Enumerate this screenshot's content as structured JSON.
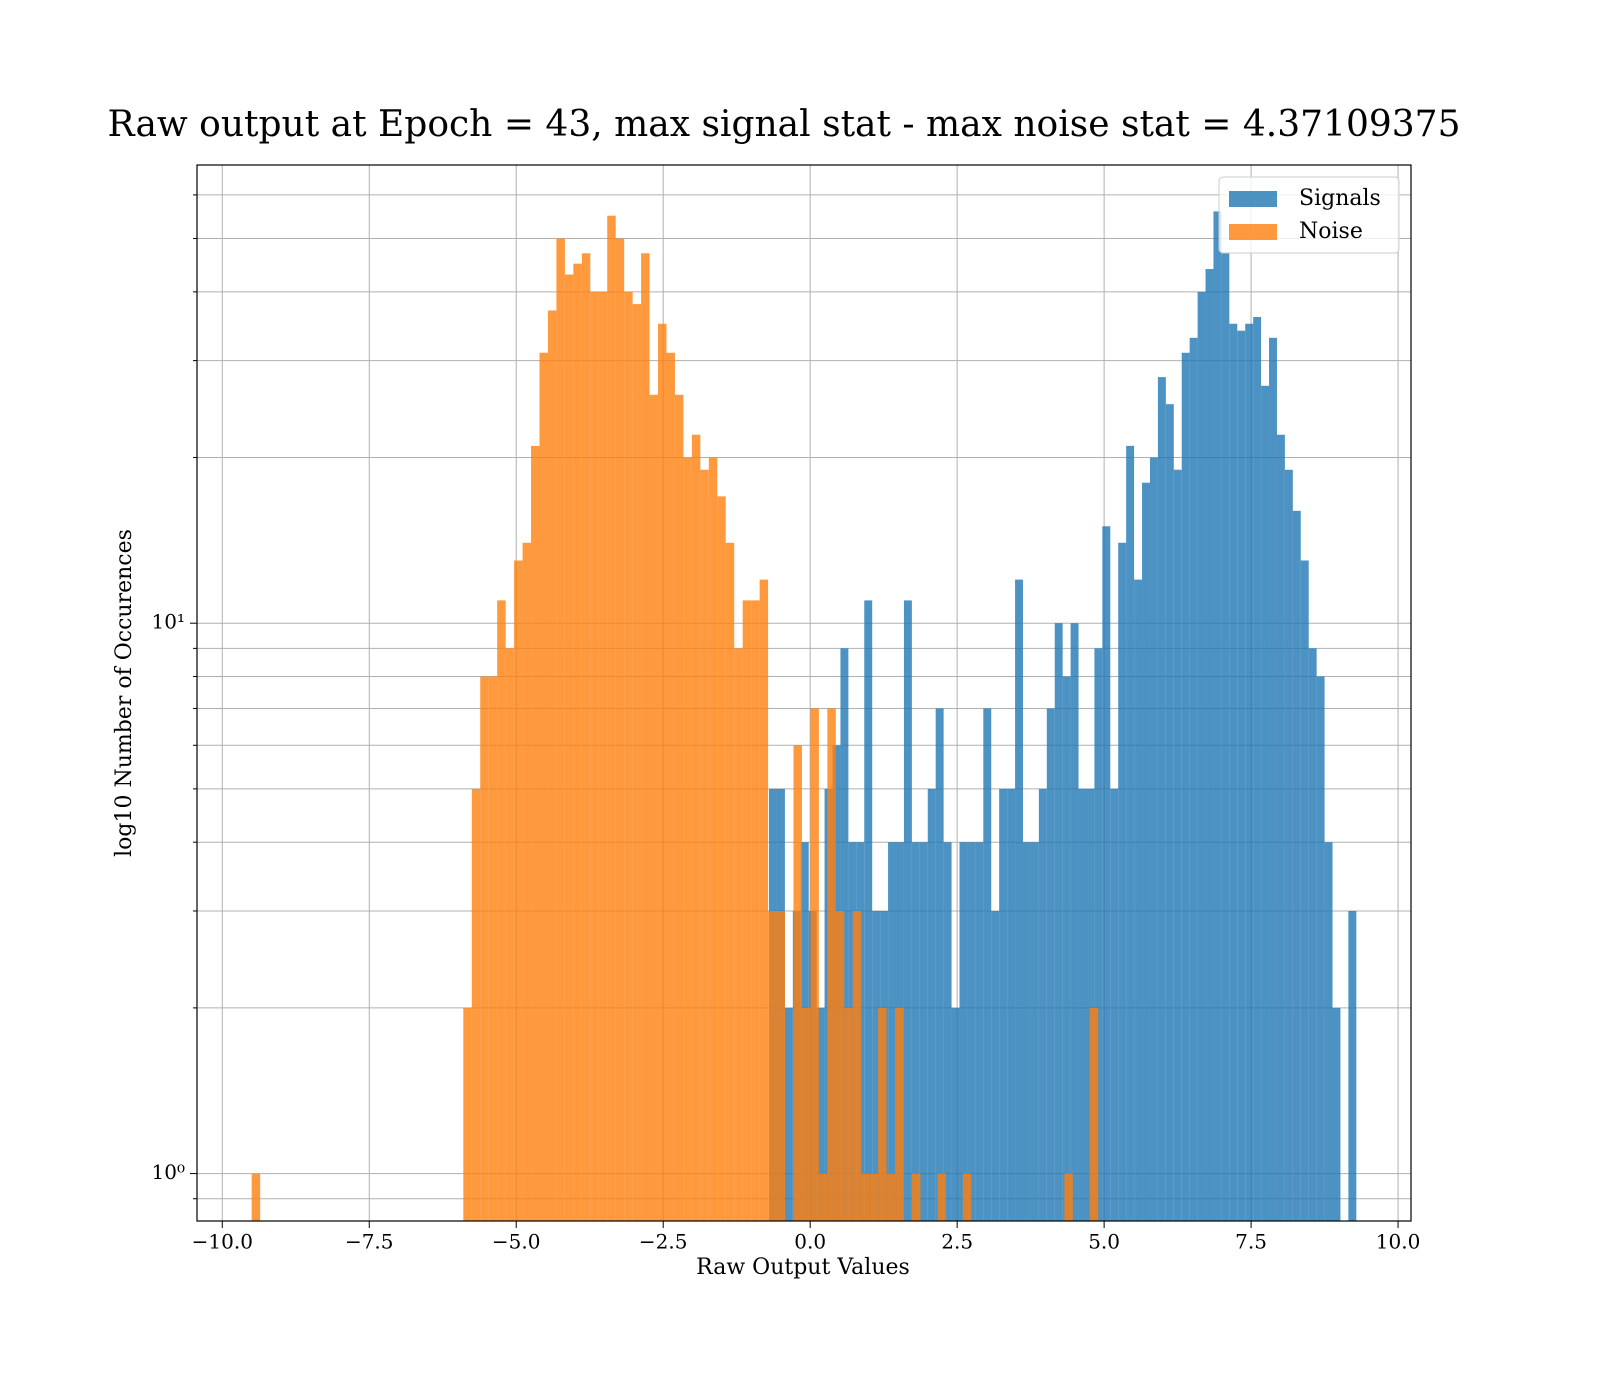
{
  "chart_data": {
    "type": "histogram",
    "title": "Raw output at Epoch = 43, max signal stat - max noise stat = 4.37109375",
    "x_label": "Raw Output Values",
    "y_label": "log10 Number of Occurences",
    "log_y": true,
    "grid": true,
    "legend": "upper right",
    "opacity": 0.8,
    "xlim": [
      -10.43,
      10.22
    ],
    "ylim": [
      0.82,
      68
    ],
    "xticks": [
      {
        "value": -10,
        "label": "−10.0"
      },
      {
        "value": -7.5,
        "label": "−7.5"
      },
      {
        "value": -5,
        "label": "−5.0"
      },
      {
        "value": -2.5,
        "label": "−2.5"
      },
      {
        "value": 0,
        "label": "0.0"
      },
      2.5,
      {
        "value": 5,
        "label": "5.0"
      },
      7.5,
      {
        "value": 10,
        "label": "10.0"
      }
    ],
    "yticks": [
      {
        "value": 1,
        "label": "10⁰"
      },
      {
        "value": 10,
        "label": "10¹"
      }
    ],
    "yticks_minor": [
      0.9,
      2,
      3,
      4,
      5,
      6,
      7,
      8,
      9,
      20,
      30,
      40,
      50,
      60
    ],
    "series": [
      {
        "name": "Signals",
        "color": "#1f77b4",
        "bins": [
          -0.7,
          -0.565,
          -0.43,
          -0.295,
          -0.16,
          -0.025,
          0.11,
          0.245,
          0.38,
          0.515,
          0.65,
          0.785,
          0.92,
          1.055,
          1.19,
          1.325,
          1.46,
          1.595,
          1.73,
          1.865,
          2.0,
          2.135,
          2.27,
          2.405,
          2.54,
          2.675,
          2.81,
          2.945,
          3.08,
          3.215,
          3.35,
          3.485,
          3.62,
          3.755,
          3.89,
          4.025,
          4.16,
          4.295,
          4.43,
          4.565,
          4.7,
          4.835,
          4.97,
          5.105,
          5.24,
          5.375,
          5.51,
          5.645,
          5.78,
          5.915,
          6.05,
          6.185,
          6.32,
          6.455,
          6.59,
          6.725,
          6.86,
          6.995,
          7.13,
          7.265,
          7.4,
          7.535,
          7.67,
          7.805,
          7.94,
          8.075,
          8.21,
          8.345,
          8.48,
          8.615,
          8.75,
          8.885,
          9.02,
          9.155,
          9.29
        ],
        "values": [
          5,
          5,
          2,
          3,
          4,
          3,
          2,
          5,
          6,
          9,
          4,
          4,
          11,
          3,
          3,
          4,
          4,
          11,
          4,
          4,
          5,
          7,
          4,
          2,
          4,
          4,
          4,
          7,
          3,
          5,
          5,
          12,
          4,
          4,
          5,
          7,
          10,
          8,
          10,
          5,
          5,
          9,
          15,
          5,
          14,
          21,
          12,
          18,
          20,
          28,
          25,
          19,
          31,
          33,
          40,
          44,
          56,
          47,
          35,
          34,
          35,
          36,
          27,
          33,
          22,
          19,
          16,
          13,
          9,
          8,
          4,
          2,
          0,
          3
        ]
      },
      {
        "name": "Noise",
        "color": "#ff7f0e",
        "bins": [
          -9.5,
          -9.356,
          -9.212,
          -9.068,
          -8.924,
          -8.78,
          -8.636,
          -8.492,
          -8.348,
          -8.204,
          -8.06,
          -7.916,
          -7.772,
          -7.628,
          -7.484,
          -7.34,
          -7.196,
          -7.052,
          -6.908,
          -6.764,
          -6.62,
          -6.476,
          -6.332,
          -6.188,
          -6.044,
          -5.9,
          -5.756,
          -5.612,
          -5.468,
          -5.324,
          -5.18,
          -5.036,
          -4.892,
          -4.748,
          -4.604,
          -4.46,
          -4.316,
          -4.172,
          -4.028,
          -3.884,
          -3.74,
          -3.596,
          -3.452,
          -3.308,
          -3.164,
          -3.02,
          -2.876,
          -2.732,
          -2.588,
          -2.444,
          -2.3,
          -2.156,
          -2.012,
          -1.868,
          -1.724,
          -1.58,
          -1.436,
          -1.292,
          -1.148,
          -1.004,
          -0.86,
          -0.716,
          -0.572,
          -0.428,
          -0.284,
          -0.14,
          0.004,
          0.148,
          0.292,
          0.436,
          0.58,
          0.724,
          0.868,
          1.012,
          1.156,
          1.3,
          1.444,
          1.588,
          1.732,
          1.876,
          2.02,
          2.164,
          2.308,
          2.452,
          2.596,
          2.74,
          2.884,
          3.028,
          3.172,
          3.316,
          3.46,
          3.604,
          3.748,
          3.892,
          4.036,
          4.18,
          4.324,
          4.468,
          4.612,
          4.756,
          4.9
        ],
        "values": [
          1,
          0,
          0,
          0,
          0,
          0,
          0,
          0,
          0,
          0,
          0,
          0,
          0,
          0,
          0,
          0,
          0,
          0,
          0,
          0,
          0,
          0,
          0,
          0,
          0,
          2,
          5,
          8,
          8,
          11,
          9,
          13,
          14,
          21,
          31,
          37,
          50,
          43,
          45,
          47,
          40,
          40,
          55,
          50,
          40,
          38,
          47,
          26,
          35,
          31,
          26,
          20,
          22,
          19,
          20,
          17,
          14,
          9,
          11,
          11,
          12,
          3,
          3,
          0,
          6,
          2,
          7,
          1,
          7,
          3,
          2,
          3,
          1,
          1,
          2,
          1,
          2,
          0,
          1,
          0,
          0,
          1,
          0,
          0,
          1,
          0,
          0,
          0,
          0,
          0,
          0,
          0,
          0,
          0,
          0,
          0,
          1,
          0,
          0,
          2
        ]
      }
    ]
  }
}
